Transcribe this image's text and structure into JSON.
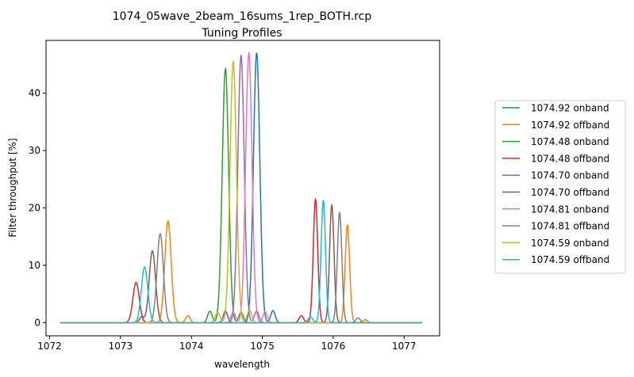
{
  "chart_data": {
    "type": "line",
    "title": "1074_05wave_2beam_16sums_1rep_BOTH.rcp",
    "subtitle": "Tuning Profiles",
    "xlabel": "wavelength",
    "ylabel": "Filter throughput [%]",
    "xlim": [
      1071.95,
      1077.5
    ],
    "ylim": [
      -2.3,
      49.2
    ],
    "xticks": [
      1072,
      1073,
      1074,
      1075,
      1076,
      1077
    ],
    "yticks": [
      0,
      10,
      20,
      30,
      40
    ],
    "x_range": [
      1072.15,
      1077.25
    ],
    "grid": false,
    "legend_position": "right",
    "series": [
      {
        "name": "1074.92 onband",
        "color": "#1f77b4",
        "center": 1074.92,
        "peak": 47.0,
        "side_lobes": [
          {
            "center": 1074.48,
            "peak": 2.0
          },
          {
            "center": 1075.15,
            "peak": 2.1
          }
        ]
      },
      {
        "name": "1074.92 offband",
        "color": "#ff7f0e",
        "center": 1073.67,
        "peak": 17.7,
        "side_lobes": [
          {
            "center": 1076.2,
            "peak": 17.0
          },
          {
            "center": 1073.95,
            "peak": 1.2
          },
          {
            "center": 1076.45,
            "peak": 0.5
          }
        ]
      },
      {
        "name": "1074.48 onband",
        "color": "#2ca02c",
        "center": 1074.48,
        "peak": 44.3,
        "side_lobes": [
          {
            "center": 1074.26,
            "peak": 2.0
          },
          {
            "center": 1074.7,
            "peak": 1.8
          }
        ]
      },
      {
        "name": "1074.48 offband",
        "color": "#d62728",
        "center": 1073.22,
        "peak": 7.0,
        "side_lobes": [
          {
            "center": 1075.75,
            "peak": 21.5
          },
          {
            "center": 1075.55,
            "peak": 1.2
          }
        ]
      },
      {
        "name": "1074.70 onband",
        "color": "#9467bd",
        "center": 1074.7,
        "peak": 46.5,
        "side_lobes": [
          {
            "center": 1074.48,
            "peak": 1.8
          },
          {
            "center": 1074.92,
            "peak": 2.0
          }
        ]
      },
      {
        "name": "1074.70 offband",
        "color": "#8c564b",
        "center": 1073.45,
        "peak": 12.5,
        "side_lobes": [
          {
            "center": 1075.98,
            "peak": 20.5
          },
          {
            "center": 1073.3,
            "peak": 1.0
          }
        ]
      },
      {
        "name": "1074.81 onband",
        "color": "#e377c2",
        "center": 1074.81,
        "peak": 47.0,
        "side_lobes": [
          {
            "center": 1074.59,
            "peak": 1.8
          },
          {
            "center": 1075.04,
            "peak": 1.9
          }
        ]
      },
      {
        "name": "1074.81 offband",
        "color": "#7f7f7f",
        "center": 1073.56,
        "peak": 15.5,
        "side_lobes": [
          {
            "center": 1076.09,
            "peak": 19.2
          },
          {
            "center": 1076.35,
            "peak": 0.8
          }
        ]
      },
      {
        "name": "1074.59 onband",
        "color": "#bcbd22",
        "center": 1074.59,
        "peak": 45.5,
        "side_lobes": [
          {
            "center": 1074.37,
            "peak": 1.8
          },
          {
            "center": 1074.82,
            "peak": 2.2
          }
        ]
      },
      {
        "name": "1074.59 offband",
        "color": "#17becf",
        "center": 1073.34,
        "peak": 9.7,
        "side_lobes": [
          {
            "center": 1075.86,
            "peak": 21.3
          },
          {
            "center": 1075.68,
            "peak": 1.0
          }
        ]
      }
    ]
  }
}
